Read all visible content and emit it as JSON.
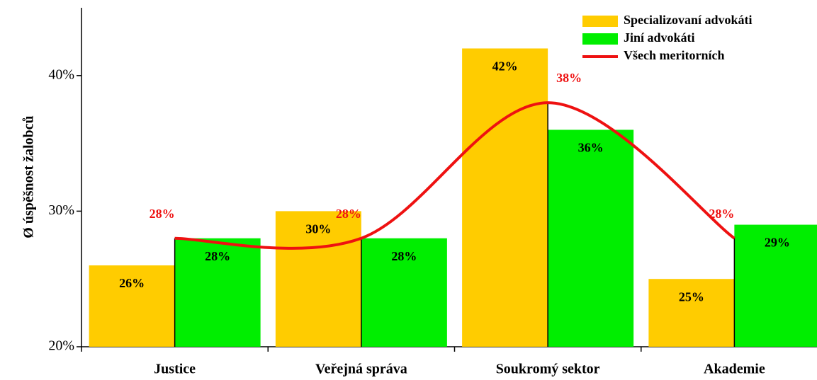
{
  "chart_data": {
    "type": "bar",
    "y_label": "Ø úspěšnost žalobců",
    "categories": [
      "Justice",
      "Veřejná správa",
      "Soukromý sektor",
      "Akademie"
    ],
    "series": [
      {
        "name": "Specializovaní advokáti",
        "color": "#ffcc00",
        "values": [
          26,
          30,
          42,
          25
        ],
        "value_labels": [
          "26%",
          "30%",
          "42%",
          "25%"
        ]
      },
      {
        "name": "Jiní advokáti",
        "color": "#00ee00",
        "values": [
          28,
          28,
          36,
          29
        ],
        "value_labels": [
          "28%",
          "28%",
          "36%",
          "29%"
        ]
      },
      {
        "name": "Všech meritorních",
        "color": "#ee1111",
        "type": "line",
        "values": [
          28,
          28,
          38,
          28
        ],
        "value_labels": [
          "28%",
          "28%",
          "38%",
          "28%"
        ]
      }
    ],
    "ylim": [
      20,
      45
    ],
    "yticks": [
      {
        "value": 20,
        "label": "20%"
      },
      {
        "value": 30,
        "label": "30%"
      },
      {
        "value": 40,
        "label": "40%"
      }
    ],
    "legend": "top-right"
  }
}
